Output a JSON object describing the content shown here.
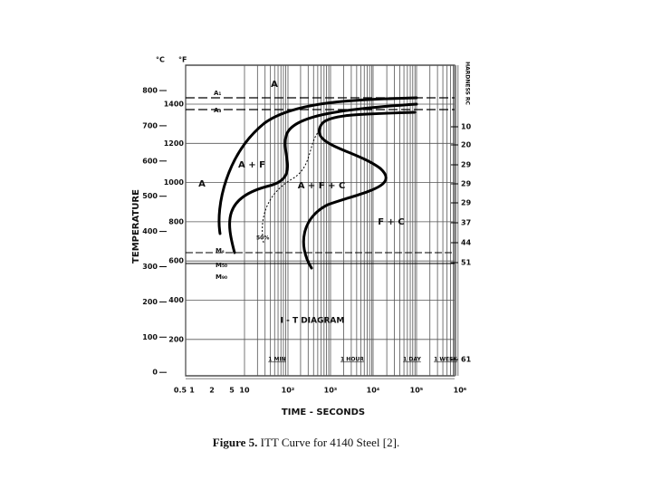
{
  "figure": {
    "celsius_unit": "°C",
    "fahrenheit_unit": "°F",
    "y_label": "TEMPERATURE",
    "right_label": "HARDNESS RC",
    "x_label": "TIME - SECONDS",
    "title": "I - T DIAGRAM",
    "celsius_ticks": [
      "800",
      "700",
      "600",
      "500",
      "400",
      "300",
      "200",
      "100",
      "0"
    ],
    "fahrenheit_ticks": [
      "1400",
      "1200",
      "1000",
      "800",
      "600",
      "400",
      "200"
    ],
    "hardness_ticks": [
      "10",
      "20",
      "29",
      "29",
      "29",
      "37",
      "44",
      "51",
      "61"
    ],
    "time_ticks": [
      "0.5",
      "1",
      "2",
      "5",
      "10",
      "10²",
      "10³",
      "10⁴",
      "10⁵",
      "10⁶"
    ],
    "time_marks": [
      "1 MIN",
      "1 HOUR",
      "1 DAY",
      "1 WEEK"
    ],
    "regions": [
      "A",
      "A + F",
      "A",
      "A + F + C",
      "F + C"
    ],
    "lines": [
      "A₁",
      "A₃",
      "Mₛ",
      "M₅₀",
      "M₉₀"
    ],
    "percent": "50%"
  },
  "caption": {
    "label": "Figure 5.",
    "text": "ITT Curve for 4140 Steel [2]."
  }
}
